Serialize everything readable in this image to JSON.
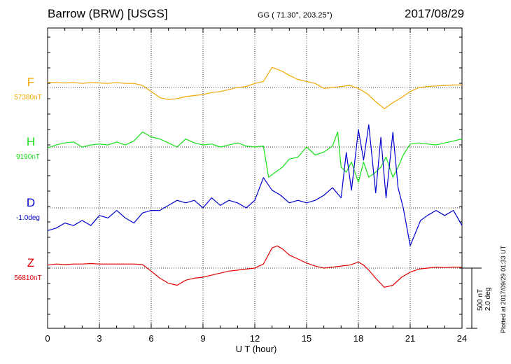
{
  "header": {
    "station": "Barrow (BRW)  [USGS]",
    "coords": "GG ( 71.30°, 203.25°)",
    "date": "2017/08/29"
  },
  "plotted_note": "Plotted at 2017/09/29 01:33 UT",
  "scale": {
    "line1": "500 nT",
    "line2": "2.0 deg"
  },
  "colors": {
    "F": "#f0a800",
    "H": "#18e018",
    "D": "#0000d0",
    "Z": "#e00000"
  },
  "chart_data": {
    "type": "line",
    "xlabel": "U T (hour)",
    "xlim": [
      0,
      24
    ],
    "xticks": [
      "0",
      "3",
      "6",
      "9",
      "12",
      "15",
      "18",
      "21",
      "24"
    ],
    "grid": true,
    "series": [
      {
        "name": "F",
        "baseline_label": "57380nT",
        "x": [
          0,
          0.5,
          1,
          1.5,
          2,
          2.5,
          3,
          3.5,
          4,
          4.5,
          5,
          5.5,
          6,
          6.5,
          7,
          7.5,
          8,
          8.5,
          9,
          9.5,
          10,
          10.5,
          11,
          11.5,
          12,
          12.5,
          13,
          13.3,
          13.6,
          14,
          14.5,
          15,
          15.5,
          16,
          16.5,
          17,
          17.5,
          18,
          18.5,
          19,
          19.5,
          20,
          20.5,
          21,
          21.5,
          22,
          22.5,
          23,
          23.5,
          24
        ],
        "values": [
          50,
          50,
          45,
          50,
          40,
          50,
          45,
          40,
          50,
          40,
          40,
          20,
          -40,
          -100,
          -120,
          -110,
          -90,
          -80,
          -70,
          -50,
          -40,
          -20,
          0,
          10,
          40,
          60,
          200,
          180,
          160,
          120,
          80,
          60,
          40,
          -10,
          0,
          10,
          20,
          -10,
          -60,
          -140,
          -210,
          -150,
          -100,
          -40,
          0,
          10,
          15,
          20,
          25,
          25
        ]
      },
      {
        "name": "H",
        "baseline_label": "9190nT",
        "x": [
          0,
          0.5,
          1,
          1.5,
          2,
          2.5,
          3,
          3.5,
          4,
          4.5,
          5,
          5.5,
          6,
          6.5,
          7,
          7.5,
          8,
          8.5,
          9,
          9.5,
          10,
          10.5,
          11,
          11.5,
          12,
          12.5,
          12.8,
          13.2,
          13.6,
          14,
          14.5,
          15,
          15.5,
          16,
          16.5,
          16.8,
          17,
          17.3,
          17.6,
          18,
          18.3,
          18.6,
          19,
          19.3,
          19.6,
          20,
          20.3,
          20.6,
          21,
          21.5,
          22,
          22.5,
          23,
          23.5,
          24
        ],
        "values": [
          -10,
          20,
          40,
          50,
          0,
          20,
          30,
          20,
          50,
          20,
          60,
          150,
          100,
          80,
          40,
          0,
          80,
          40,
          20,
          30,
          0,
          20,
          40,
          10,
          0,
          10,
          -300,
          -250,
          -200,
          -120,
          -100,
          0,
          -80,
          -50,
          10,
          150,
          -200,
          -250,
          -150,
          -350,
          -150,
          -300,
          -250,
          -200,
          -100,
          -300,
          -200,
          -80,
          30,
          40,
          30,
          20,
          40,
          60,
          80
        ]
      },
      {
        "name": "D",
        "baseline_label": "-1.0deg",
        "x": [
          0,
          0.5,
          1,
          1.5,
          2,
          2.5,
          3,
          3.5,
          4,
          4.5,
          5,
          5.5,
          6,
          6.5,
          7,
          7.5,
          8,
          8.5,
          9,
          9.5,
          10,
          10.5,
          11,
          11.5,
          12,
          12.5,
          13,
          13.5,
          14,
          14.5,
          15,
          15.5,
          16,
          16.5,
          17,
          17.3,
          17.6,
          18,
          18.3,
          18.6,
          19,
          19.3,
          19.6,
          20,
          20.3,
          20.6,
          21,
          21.3,
          21.6,
          22,
          22.5,
          23,
          23.5,
          24
        ],
        "values": [
          -0.9,
          -0.8,
          -0.6,
          -0.7,
          -0.5,
          -0.7,
          -0.3,
          -0.4,
          -0.1,
          -0.4,
          -0.6,
          -0.2,
          -0.1,
          -0.1,
          0.1,
          0.3,
          0.2,
          0.3,
          0.0,
          0.4,
          0.1,
          0.3,
          0.2,
          0.0,
          0.3,
          1.2,
          0.7,
          0.5,
          0.2,
          0.3,
          0.2,
          0.3,
          0.5,
          0.8,
          0.4,
          2.2,
          0.7,
          3.1,
          1.9,
          3.3,
          0.6,
          2.8,
          0.4,
          3.0,
          0.8,
          0.0,
          -1.5,
          -1.0,
          -0.5,
          -0.3,
          -0.1,
          -0.3,
          -0.1,
          -0.7
        ]
      },
      {
        "name": "Z",
        "baseline_label": "56810nT",
        "x": [
          0,
          0.5,
          1,
          1.5,
          2,
          2.5,
          3,
          3.5,
          4,
          4.5,
          5,
          5.5,
          6,
          6.5,
          7,
          7.5,
          8,
          8.5,
          9,
          9.5,
          10,
          10.5,
          11,
          11.5,
          12,
          12.5,
          13,
          13.3,
          13.6,
          14,
          14.5,
          15,
          15.5,
          16,
          16.5,
          17,
          17.5,
          18,
          18.3,
          18.6,
          19,
          19.5,
          20,
          20.5,
          21,
          21.5,
          22,
          22.5,
          23,
          23.5,
          24
        ],
        "values": [
          30,
          40,
          35,
          40,
          40,
          45,
          40,
          40,
          40,
          40,
          40,
          35,
          -30,
          -100,
          -150,
          -170,
          -120,
          -100,
          -90,
          -70,
          -50,
          -30,
          -20,
          -10,
          0,
          40,
          200,
          220,
          190,
          130,
          90,
          50,
          20,
          0,
          10,
          20,
          30,
          60,
          30,
          -20,
          -100,
          -190,
          -170,
          -90,
          -40,
          -10,
          0,
          10,
          5,
          10,
          10
        ]
      }
    ]
  }
}
